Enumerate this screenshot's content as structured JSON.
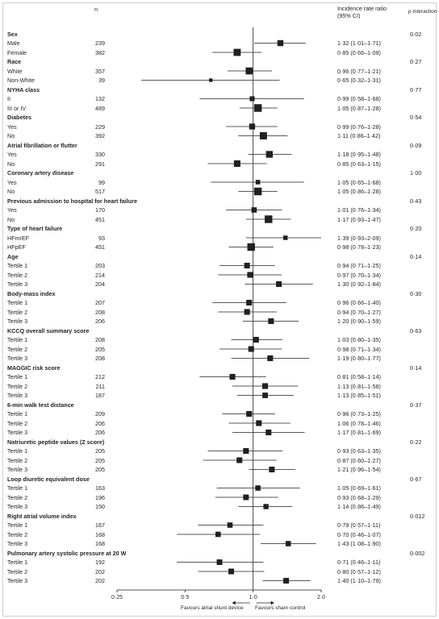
{
  "header": {
    "n_label": "n",
    "irr_label_1": "Incidence rate ratio",
    "irr_label_2": "(95% CI)",
    "p_label": "p interaction"
  },
  "footer": {
    "favours_left": "Favours atrial shunt device",
    "favours_right": "Favours sham control"
  },
  "chart_data": {
    "type": "forest",
    "x_axis": {
      "scale": "log",
      "ticks": [
        0.25,
        0.5,
        1.0,
        2.0
      ],
      "tick_labels": [
        "0·25",
        "0·5",
        "1·0",
        "2·0"
      ],
      "reference_line": 1.0,
      "xlim": [
        0.25,
        2.0
      ]
    },
    "groups": [
      {
        "name": "Sex",
        "p": "0·02",
        "rows": [
          {
            "label": "Male",
            "n": 239,
            "est": 1.32,
            "lo": 1.01,
            "hi": 1.71,
            "ci_text": "1·32 (1·01–1·71)"
          },
          {
            "label": "Female",
            "n": 382,
            "est": 0.85,
            "lo": 0.66,
            "hi": 1.09,
            "ci_text": "0·85 (0·66–1·09)"
          }
        ]
      },
      {
        "name": "Race",
        "p": "0·27",
        "rows": [
          {
            "label": "White",
            "n": 357,
            "est": 0.96,
            "lo": 0.77,
            "hi": 1.21,
            "ci_text": "0·96 (0·77–1·21)"
          },
          {
            "label": "Non-White",
            "n": 39,
            "est": 0.65,
            "lo": 0.32,
            "hi": 1.31,
            "ci_text": "0·65 (0·32–1·31)"
          }
        ]
      },
      {
        "name": "NYHA class",
        "p": "0·77",
        "rows": [
          {
            "label": "II",
            "n": 132,
            "est": 0.99,
            "lo": 0.58,
            "hi": 1.68,
            "ci_text": "0·99 (0·58–1·68)"
          },
          {
            "label": "III or IV",
            "n": 489,
            "est": 1.05,
            "lo": 0.87,
            "hi": 1.28,
            "ci_text": "1·05 (0·87–1·28)"
          }
        ]
      },
      {
        "name": "Diabetes",
        "p": "0·54",
        "rows": [
          {
            "label": "Yes",
            "n": 229,
            "est": 0.99,
            "lo": 0.76,
            "hi": 1.28,
            "ci_text": "0·99 (0·76–1·28)"
          },
          {
            "label": "No",
            "n": 392,
            "est": 1.11,
            "lo": 0.86,
            "hi": 1.42,
            "ci_text": "1·11 (0·86–1·42)"
          }
        ]
      },
      {
        "name": "Atrial fibrillation or flutter",
        "p": "0·09",
        "rows": [
          {
            "label": "Yes",
            "n": 330,
            "est": 1.18,
            "lo": 0.95,
            "hi": 1.48,
            "ci_text": "1·18 (0·95–1·48)"
          },
          {
            "label": "No",
            "n": 291,
            "est": 0.85,
            "lo": 0.63,
            "hi": 1.15,
            "ci_text": "0·85 (0·63–1·15)"
          }
        ]
      },
      {
        "name": "Coronary artery disease",
        "p": "1·00",
        "rows": [
          {
            "label": "Yes",
            "n": 99,
            "est": 1.05,
            "lo": 0.65,
            "hi": 1.68,
            "ci_text": "1·05 (0·65–1·68)"
          },
          {
            "label": "No",
            "n": 517,
            "est": 1.05,
            "lo": 0.86,
            "hi": 1.28,
            "ci_text": "1·05 (0·86–1·28)"
          }
        ]
      },
      {
        "name": "Previous admission to hospital for heart failure",
        "p": "0·43",
        "rows": [
          {
            "label": "Yes",
            "n": 170,
            "est": 1.01,
            "lo": 0.76,
            "hi": 1.34,
            "ci_text": "1·01 (0·76–1·34)"
          },
          {
            "label": "No",
            "n": 451,
            "est": 1.17,
            "lo": 0.93,
            "hi": 1.47,
            "ci_text": "1·17 (0·93–1·47)"
          }
        ]
      },
      {
        "name": "Type of heart failure",
        "p": "0·20",
        "rows": [
          {
            "label": "HFmrEF",
            "n": 93,
            "est": 1.39,
            "lo": 0.93,
            "hi": 2.09,
            "ci_text": "1·39 (0·93–2·09)"
          },
          {
            "label": "HFpEF",
            "n": 451,
            "est": 0.98,
            "lo": 0.78,
            "hi": 1.23,
            "ci_text": "0·98 (0·78–1·23)"
          }
        ]
      },
      {
        "name": "Age",
        "p": "0·14",
        "rows": [
          {
            "label": "Tertile 1",
            "n": 203,
            "est": 0.94,
            "lo": 0.71,
            "hi": 1.25,
            "ci_text": "0·94 (0·71–1·25)"
          },
          {
            "label": "Tertile 2",
            "n": 214,
            "est": 0.97,
            "lo": 0.7,
            "hi": 1.34,
            "ci_text": "0·97 (0·70–1·34)"
          },
          {
            "label": "Tertile 3",
            "n": 204,
            "est": 1.3,
            "lo": 0.92,
            "hi": 1.84,
            "ci_text": "1·30 (0·92–1·84)"
          }
        ]
      },
      {
        "name": "Body-mass index",
        "p": "0·30",
        "rows": [
          {
            "label": "Tertile 1",
            "n": 207,
            "est": 0.96,
            "lo": 0.66,
            "hi": 1.4,
            "ci_text": "0·96 (0·66–1·40)"
          },
          {
            "label": "Tertile 2",
            "n": 208,
            "est": 0.94,
            "lo": 0.7,
            "hi": 1.27,
            "ci_text": "0·94 (0·70–1·27)"
          },
          {
            "label": "Tertile 3",
            "n": 206,
            "est": 1.2,
            "lo": 0.9,
            "hi": 1.59,
            "ci_text": "1·20 (0·90–1·59)"
          }
        ]
      },
      {
        "name": "KCCQ overall summary score",
        "p": "0·63",
        "rows": [
          {
            "label": "Tertile 1",
            "n": 208,
            "est": 1.03,
            "lo": 0.8,
            "hi": 1.35,
            "ci_text": "1·03 (0·80–1·35)"
          },
          {
            "label": "Tertile 2",
            "n": 205,
            "est": 0.98,
            "lo": 0.71,
            "hi": 1.34,
            "ci_text": "0·98 (0·71–1·34)"
          },
          {
            "label": "Tertile 3",
            "n": 208,
            "est": 1.19,
            "lo": 0.8,
            "hi": 1.77,
            "ci_text": "1·19 (0·80–1·77)"
          }
        ]
      },
      {
        "name": "MAGGIC risk score",
        "p": "0·14",
        "rows": [
          {
            "label": "Tertile 1",
            "n": 212,
            "est": 0.81,
            "lo": 0.58,
            "hi": 1.14,
            "ci_text": "0·81 (0·58–1·14)"
          },
          {
            "label": "Tertile 2",
            "n": 211,
            "est": 1.13,
            "lo": 0.81,
            "hi": 1.58,
            "ci_text": "1·13 (0·81–1·58)"
          },
          {
            "label": "Tertile 3",
            "n": 187,
            "est": 1.13,
            "lo": 0.85,
            "hi": 1.51,
            "ci_text": "1·13 (0·85–1·51)"
          }
        ]
      },
      {
        "name": "6-min walk test distance",
        "p": "0·37",
        "rows": [
          {
            "label": "Tertile 1",
            "n": 209,
            "est": 0.96,
            "lo": 0.73,
            "hi": 1.25,
            "ci_text": "0·96 (0·73–1·25)"
          },
          {
            "label": "Tertile 2",
            "n": 206,
            "est": 1.06,
            "lo": 0.78,
            "hi": 1.46,
            "ci_text": "1·06 (0·78–1·46)"
          },
          {
            "label": "Tertile 3",
            "n": 206,
            "est": 1.17,
            "lo": 0.81,
            "hi": 1.69,
            "ci_text": "1·17 (0·81–1·69)"
          }
        ]
      },
      {
        "name": "Natriuretic peptide values (Z score)",
        "p": "0·22",
        "rows": [
          {
            "label": "Tertile 1",
            "n": 205,
            "est": 0.93,
            "lo": 0.63,
            "hi": 1.35,
            "ci_text": "0·93 (0·63–1·35)"
          },
          {
            "label": "Tertile 2",
            "n": 205,
            "est": 0.87,
            "lo": 0.6,
            "hi": 1.27,
            "ci_text": "0·87 (0·60–1·27)"
          },
          {
            "label": "Tertile 3",
            "n": 205,
            "est": 1.21,
            "lo": 0.96,
            "hi": 1.54,
            "ci_text": "1·21 (0·96–1·54)"
          }
        ]
      },
      {
        "name": "Loop diuretic equivalent dose",
        "p": "0·67",
        "rows": [
          {
            "label": "Tertile 1",
            "n": 163,
            "est": 1.05,
            "lo": 0.69,
            "hi": 1.61,
            "ci_text": "1·05 (0·69–1·61)"
          },
          {
            "label": "Tertile 2",
            "n": 196,
            "est": 0.93,
            "lo": 0.68,
            "hi": 1.29,
            "ci_text": "0·93 (0·68–1·29)"
          },
          {
            "label": "Tertile 3",
            "n": 150,
            "est": 1.14,
            "lo": 0.86,
            "hi": 1.49,
            "ci_text": "1·14 (0·86–1·49)"
          }
        ]
      },
      {
        "name": "Right atrial volume index",
        "p": "0·012",
        "rows": [
          {
            "label": "Tertile 1",
            "n": 167,
            "est": 0.79,
            "lo": 0.57,
            "hi": 1.11,
            "ci_text": "0·79 (0·57–1·11)"
          },
          {
            "label": "Tertile 2",
            "n": 168,
            "est": 0.7,
            "lo": 0.46,
            "hi": 1.07,
            "ci_text": "0·70 (0·46–1·07)"
          },
          {
            "label": "Tertile 3",
            "n": 168,
            "est": 1.43,
            "lo": 1.08,
            "hi": 1.9,
            "ci_text": "1·43 (1·08–1·90)"
          }
        ]
      },
      {
        "name": "Pulmonary artery systolic pressure at 20 W",
        "p": "0·002",
        "rows": [
          {
            "label": "Tertile 1",
            "n": 192,
            "est": 0.71,
            "lo": 0.46,
            "hi": 1.11,
            "ci_text": "0·71 (0·46–1·11)"
          },
          {
            "label": "Tertile 2",
            "n": 202,
            "est": 0.8,
            "lo": 0.57,
            "hi": 1.12,
            "ci_text": "0·80 (0·57–1·12)"
          },
          {
            "label": "Tertile 3",
            "n": 202,
            "est": 1.4,
            "lo": 1.1,
            "hi": 1.79,
            "ci_text": "1·40 (1·10–1·79)"
          }
        ]
      }
    ]
  }
}
